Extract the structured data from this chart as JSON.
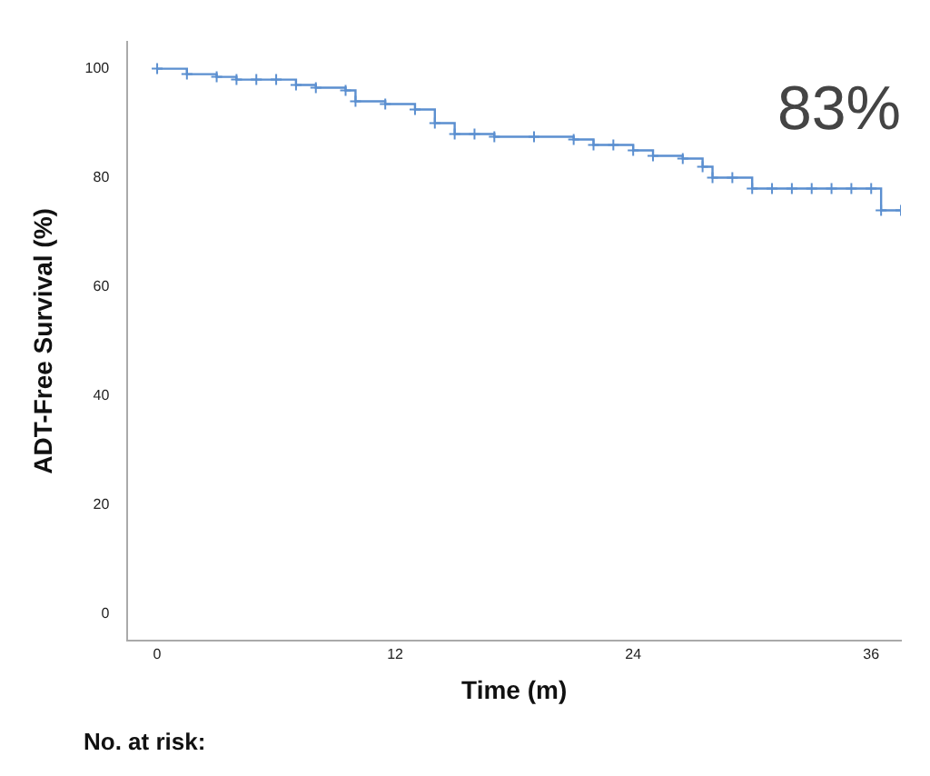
{
  "chart_data": {
    "type": "step",
    "xlabel": "Time (m)",
    "ylabel": "ADT-Free Survival (%)",
    "x": [
      0,
      1.5,
      3,
      4,
      5,
      6,
      7,
      8,
      9.5,
      10,
      11.5,
      13,
      14,
      15,
      16,
      17,
      19,
      21,
      22,
      23,
      24,
      25,
      26.5,
      27.5,
      28,
      29,
      30,
      31,
      32,
      33,
      34,
      35,
      36,
      36.5,
      37.5
    ],
    "series": [
      {
        "color": "#5b8fd0",
        "values": [
          100,
          99,
          98.5,
          98,
          98,
          98,
          97,
          96.5,
          96,
          94,
          93.5,
          92.5,
          90,
          88,
          88,
          87.5,
          87.5,
          87,
          86,
          86,
          85,
          84,
          83.5,
          82,
          80,
          80,
          78,
          78,
          78,
          78,
          78,
          78,
          78,
          74,
          74
        ]
      }
    ],
    "xlim": [
      -1.5,
      37.5
    ],
    "xticks": [
      0,
      12,
      24,
      36
    ],
    "ylim": [
      -5,
      105
    ],
    "yticks": [
      0,
      20,
      40,
      60,
      80,
      100
    ],
    "grid": false,
    "marker": "cross",
    "line_style": "solid",
    "annotations": [
      "83%",
      "No. at risk:"
    ]
  }
}
